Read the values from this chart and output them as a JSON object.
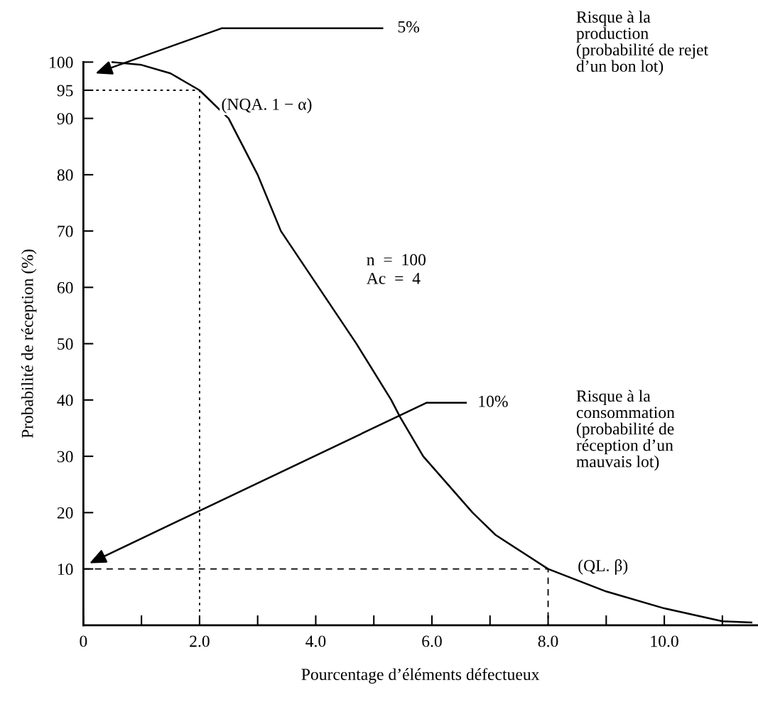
{
  "chart_data": {
    "type": "line",
    "xlabel": "Pourcentage d’éléments défectueux",
    "ylabel": "Probabilité de réception (%)",
    "xlim": [
      0,
      11.6
    ],
    "ylim": [
      0,
      100
    ],
    "xticks": [
      {
        "value": 0,
        "label": "0"
      },
      {
        "value": 1,
        "label": null
      },
      {
        "value": 2,
        "label": "2.0"
      },
      {
        "value": 3,
        "label": null
      },
      {
        "value": 4,
        "label": "4.0"
      },
      {
        "value": 5,
        "label": null
      },
      {
        "value": 6,
        "label": "6.0"
      },
      {
        "value": 7,
        "label": null
      },
      {
        "value": 8,
        "label": "8.0"
      },
      {
        "value": 9,
        "label": null
      },
      {
        "value": 10,
        "label": "10.0"
      },
      {
        "value": 11,
        "label": null
      }
    ],
    "yticks": [
      10,
      20,
      30,
      40,
      50,
      60,
      70,
      80,
      90,
      95,
      100
    ],
    "grid": false,
    "marker": "none",
    "series": [
      {
        "color": "#000000",
        "line_style": "solid",
        "x": [
          0.5,
          1.0,
          1.5,
          2.0,
          2.5,
          3.0,
          3.4,
          4.05,
          4.7,
          5.3,
          5.45,
          5.85,
          6.7,
          7.1,
          8.0,
          9.0,
          10.0,
          11.0,
          11.5
        ],
        "values": [
          100,
          99.5,
          98,
          95,
          90,
          80,
          70,
          60,
          50,
          40,
          37,
          30,
          20,
          16,
          10,
          6,
          3,
          0.7,
          0.5
        ]
      },
      {
        "color": "#000000",
        "line_style": "dotted",
        "x": [
          0,
          2,
          2
        ],
        "values": [
          95,
          95,
          0
        ]
      },
      {
        "color": "#000000",
        "line_style": "dashed",
        "x": [
          0,
          8,
          8
        ],
        "values": [
          10,
          10,
          0
        ]
      }
    ],
    "annotations": [
      "5%",
      "Risque à la\nproduction\n(probabilité de rejet\nd’un bon lot)",
      "10%",
      "Risque à la\nconsommation\n(probabilité de\nréception d’un\nmauvais lot)",
      {
        "text": "(NQA. 1 − α)",
        "x": 2.0,
        "y": 95
      },
      {
        "text": "(QL. β)",
        "x": 8.0,
        "y": 10
      },
      "n  =  100\nAc  =  4"
    ]
  }
}
